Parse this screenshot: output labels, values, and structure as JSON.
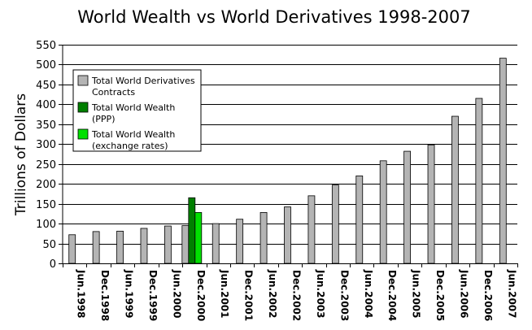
{
  "chart_data": {
    "type": "bar",
    "title": "World Wealth vs World Derivatives 1998-2007",
    "xlabel": "",
    "ylabel": "Trillions of Dollars",
    "ylim": [
      0,
      550
    ],
    "yticks": [
      0,
      50,
      100,
      150,
      200,
      250,
      300,
      350,
      400,
      450,
      500,
      550
    ],
    "grid": true,
    "legend_position": "top-left",
    "categories": [
      "Jun.1998",
      "Dec.1998",
      "Jun.1999",
      "Dec.1999",
      "Jun.2000",
      "Dec.2000",
      "Jun.2001",
      "Dec.2001",
      "Jun.2002",
      "Dec.2002",
      "Jun.2003",
      "Dec.2003",
      "Jun.2004",
      "Dec.2004",
      "Jun.2005",
      "Dec.2005",
      "Jun.2006",
      "Dec.2006",
      "Jun.2007"
    ],
    "series": [
      {
        "name": "Total World Derivatives Contracts",
        "legend_lines": [
          "Total World Derivatives",
          "Contracts"
        ],
        "color": "#b4b4b4",
        "values": [
          72,
          80,
          81,
          88,
          94,
          95,
          100,
          111,
          128,
          142,
          170,
          197,
          220,
          258,
          282,
          298,
          370,
          415,
          516
        ]
      },
      {
        "name": "Total World Wealth (PPP)",
        "legend_lines": [
          "Total World Wealth",
          "(PPP)"
        ],
        "color": "#007f00",
        "values": [
          null,
          null,
          null,
          null,
          null,
          165,
          null,
          null,
          null,
          null,
          null,
          null,
          null,
          null,
          null,
          null,
          null,
          null,
          null
        ]
      },
      {
        "name": "Total World Wealth (exchange rates)",
        "legend_lines": [
          "Total World Wealth",
          "(exchange rates)"
        ],
        "color": "#00e000",
        "values": [
          null,
          null,
          null,
          null,
          null,
          128,
          null,
          null,
          null,
          null,
          null,
          null,
          null,
          null,
          null,
          null,
          null,
          null,
          null
        ]
      }
    ]
  }
}
